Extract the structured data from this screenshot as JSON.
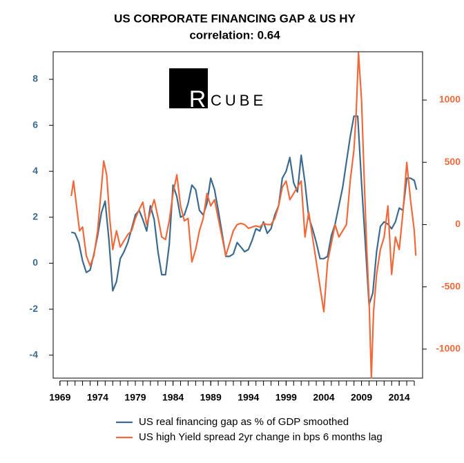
{
  "logo": [
    "R",
    "CUBE"
  ],
  "chart_data": {
    "type": "line",
    "title": "US CORPORATE FINANCING GAP & US HY",
    "subtitle": "correlation:  0.64",
    "xlim": [
      1968.1,
      2017.1
    ],
    "xticks": [
      1969,
      1974,
      1979,
      1984,
      1989,
      1994,
      1999,
      2004,
      2009,
      2014
    ],
    "xminor_ticks": [
      1969,
      1970,
      1971,
      1972,
      1973,
      1974,
      1975,
      1976,
      1977,
      1978,
      1979,
      1980,
      1981,
      1982,
      1983,
      1984,
      1985,
      1986,
      1987,
      1988,
      1989,
      1990,
      1991,
      1992,
      1993,
      1994,
      1995,
      1996,
      1997,
      1998,
      1999,
      2000,
      2001,
      2002,
      2003,
      2004,
      2005,
      2006,
      2007,
      2008,
      2009,
      2010,
      2011,
      2012,
      2013,
      2014,
      2015,
      2016
    ],
    "ylim": [
      -5,
      9.2
    ],
    "yticks": [
      -4,
      -2,
      0,
      2,
      4,
      6,
      8
    ],
    "y2lim": [
      -1233,
      1388
    ],
    "y2ticks": [
      -1000,
      -500,
      0,
      500,
      1000
    ],
    "series": [
      {
        "name": "US real financing gap as % of GDP  smoothed",
        "color": "#3b6a8e",
        "x": [
          1970.5,
          1971,
          1971.5,
          1972,
          1972.5,
          1973,
          1973.5,
          1974,
          1974.5,
          1975,
          1975.5,
          1976,
          1976.5,
          1977,
          1977.5,
          1978,
          1978.5,
          1979,
          1979.5,
          1980,
          1980.5,
          1981,
          1981.5,
          1982,
          1982.5,
          1983,
          1983.5,
          1984,
          1984.5,
          1985,
          1985.5,
          1986,
          1986.5,
          1987,
          1987.5,
          1988,
          1988.5,
          1989,
          1989.5,
          1990,
          1990.5,
          1991,
          1991.5,
          1992,
          1992.5,
          1993,
          1993.5,
          1994,
          1994.5,
          1995,
          1995.5,
          1996,
          1996.5,
          1997,
          1997.5,
          1998,
          1998.5,
          1999,
          1999.5,
          2000,
          2000.5,
          2001,
          2001.5,
          2002,
          2002.5,
          2003,
          2003.5,
          2004,
          2004.5,
          2005,
          2005.5,
          2006,
          2006.5,
          2007,
          2007.5,
          2008,
          2008.5,
          2009,
          2009.5,
          2010,
          2010.5,
          2011,
          2011.5,
          2012,
          2012.5,
          2013,
          2013.5,
          2014,
          2014.5,
          2015,
          2015.5,
          2016,
          2016.3
        ],
        "values": [
          1.35,
          1.3,
          0.9,
          0.1,
          -0.4,
          -0.3,
          0.4,
          1.2,
          2.2,
          2.7,
          1.0,
          -1.2,
          -0.8,
          0.2,
          0.5,
          0.9,
          1.5,
          2.1,
          2.3,
          1.9,
          1.4,
          2.5,
          1.9,
          0.5,
          -0.5,
          -0.5,
          0.8,
          3.4,
          2.9,
          2.0,
          2.1,
          2.6,
          3.4,
          3.2,
          2.3,
          2.1,
          2.6,
          3.7,
          3.2,
          2.3,
          1.3,
          0.3,
          0.3,
          0.4,
          0.9,
          0.7,
          0.5,
          0.6,
          1.0,
          1.5,
          1.4,
          1.8,
          1.3,
          1.5,
          2.1,
          2.5,
          3.7,
          4.0,
          4.6,
          3.5,
          3.1,
          4.7,
          3.5,
          2.0,
          1.5,
          0.9,
          0.2,
          0.2,
          0.3,
          1.2,
          1.7,
          2.5,
          3.3,
          4.4,
          5.5,
          6.4,
          6.4,
          3.5,
          0.9,
          -1.8,
          -1.3,
          0.5,
          1.6,
          1.8,
          1.7,
          1.5,
          1.8,
          2.4,
          2.3,
          3.7,
          3.7,
          3.6,
          3.2
        ]
      },
      {
        "name": "US high Yield spread 2yr change in bps 6 months lag",
        "color": "#f0693a",
        "axis": "y2",
        "x": [
          1970.5,
          1970.8,
          1971.2,
          1971.6,
          1972,
          1972.5,
          1973,
          1973.5,
          1974,
          1974.5,
          1974.8,
          1975.2,
          1975.6,
          1976,
          1976.5,
          1977,
          1977.5,
          1978,
          1978.5,
          1979,
          1979.5,
          1980,
          1980.5,
          1981,
          1981.5,
          1982,
          1982.5,
          1983,
          1983.5,
          1984,
          1984.5,
          1985,
          1985.5,
          1986,
          1986.5,
          1987,
          1987.5,
          1988,
          1988.5,
          1989,
          1989.5,
          1990,
          1990.5,
          1991,
          1991.5,
          1992,
          1992.5,
          1993,
          1993.5,
          1994,
          1994.5,
          1995,
          1995.5,
          1996,
          1996.5,
          1997,
          1997.5,
          1998,
          1998.5,
          1999,
          1999.5,
          2000,
          2000.5,
          2001,
          2001.5,
          2002,
          2002.5,
          2003,
          2003.5,
          2004,
          2004.5,
          2005,
          2005.5,
          2006,
          2006.5,
          2007,
          2007.5,
          2008,
          2008.3,
          2008.6,
          2009,
          2009.4,
          2009.7,
          2010,
          2010.3,
          2010.6,
          2011,
          2011.5,
          2012,
          2012.5,
          2013,
          2013.5,
          2014,
          2014.5,
          2015,
          2015.5,
          2016,
          2016.2
        ],
        "values": [
          230,
          350,
          150,
          -50,
          -20,
          -250,
          -330,
          -250,
          -50,
          300,
          510,
          400,
          50,
          -200,
          -50,
          -180,
          -130,
          -80,
          -50,
          50,
          120,
          180,
          0,
          100,
          200,
          60,
          -100,
          -120,
          30,
          250,
          400,
          150,
          30,
          50,
          -300,
          -200,
          -50,
          50,
          250,
          150,
          200,
          50,
          -100,
          -250,
          -150,
          -50,
          0,
          10,
          0,
          -30,
          -20,
          -10,
          -20,
          10,
          0,
          0,
          50,
          150,
          300,
          350,
          200,
          250,
          300,
          350,
          -100,
          100,
          -100,
          -300,
          -500,
          -700,
          -300,
          -150,
          0,
          -100,
          -50,
          0,
          350,
          600,
          900,
          1380,
          1000,
          300,
          -200,
          -600,
          -1230,
          -700,
          -400,
          -200,
          -100,
          150,
          -400,
          -100,
          -200,
          100,
          500,
          200,
          -50,
          -250
        ]
      }
    ]
  }
}
